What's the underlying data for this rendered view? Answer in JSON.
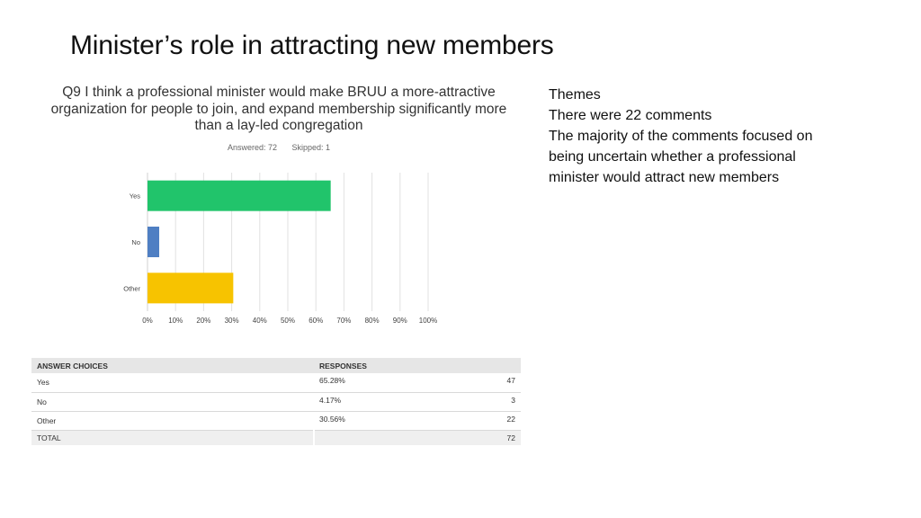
{
  "slide": {
    "title": "Minister’s role in attracting new members"
  },
  "survey": {
    "question": "Q9 I think a professional minister would make BRUU a more-attractive organization for people to join, and expand membership significantly more than a lay-led congregation",
    "answered": "Answered: 72",
    "skipped": "Skipped: 1"
  },
  "chart_data": {
    "type": "bar",
    "orientation": "horizontal",
    "categories": [
      "Yes",
      "No",
      "Other"
    ],
    "values": [
      65.28,
      4.17,
      30.56
    ],
    "colors": [
      "#21c46b",
      "#4f7fc3",
      "#f7c300"
    ],
    "xlim": [
      0,
      100
    ],
    "xticks": [
      "0%",
      "10%",
      "20%",
      "30%",
      "40%",
      "50%",
      "60%",
      "70%",
      "80%",
      "90%",
      "100%"
    ],
    "grid": true
  },
  "table": {
    "headers": [
      "ANSWER CHOICES",
      "RESPONSES"
    ],
    "rows": [
      {
        "choice": "Yes",
        "percent": "65.28%",
        "count": "47"
      },
      {
        "choice": "No",
        "percent": "4.17%",
        "count": "3"
      },
      {
        "choice": "Other",
        "percent": "30.56%",
        "count": "22"
      }
    ],
    "total_label": "TOTAL",
    "total_count": "72"
  },
  "themes": {
    "heading": "Themes",
    "lines": [
      "There were 22 comments",
      "The majority of the comments focused on",
      "being uncertain whether a professional",
      "minister would attract new members"
    ]
  }
}
